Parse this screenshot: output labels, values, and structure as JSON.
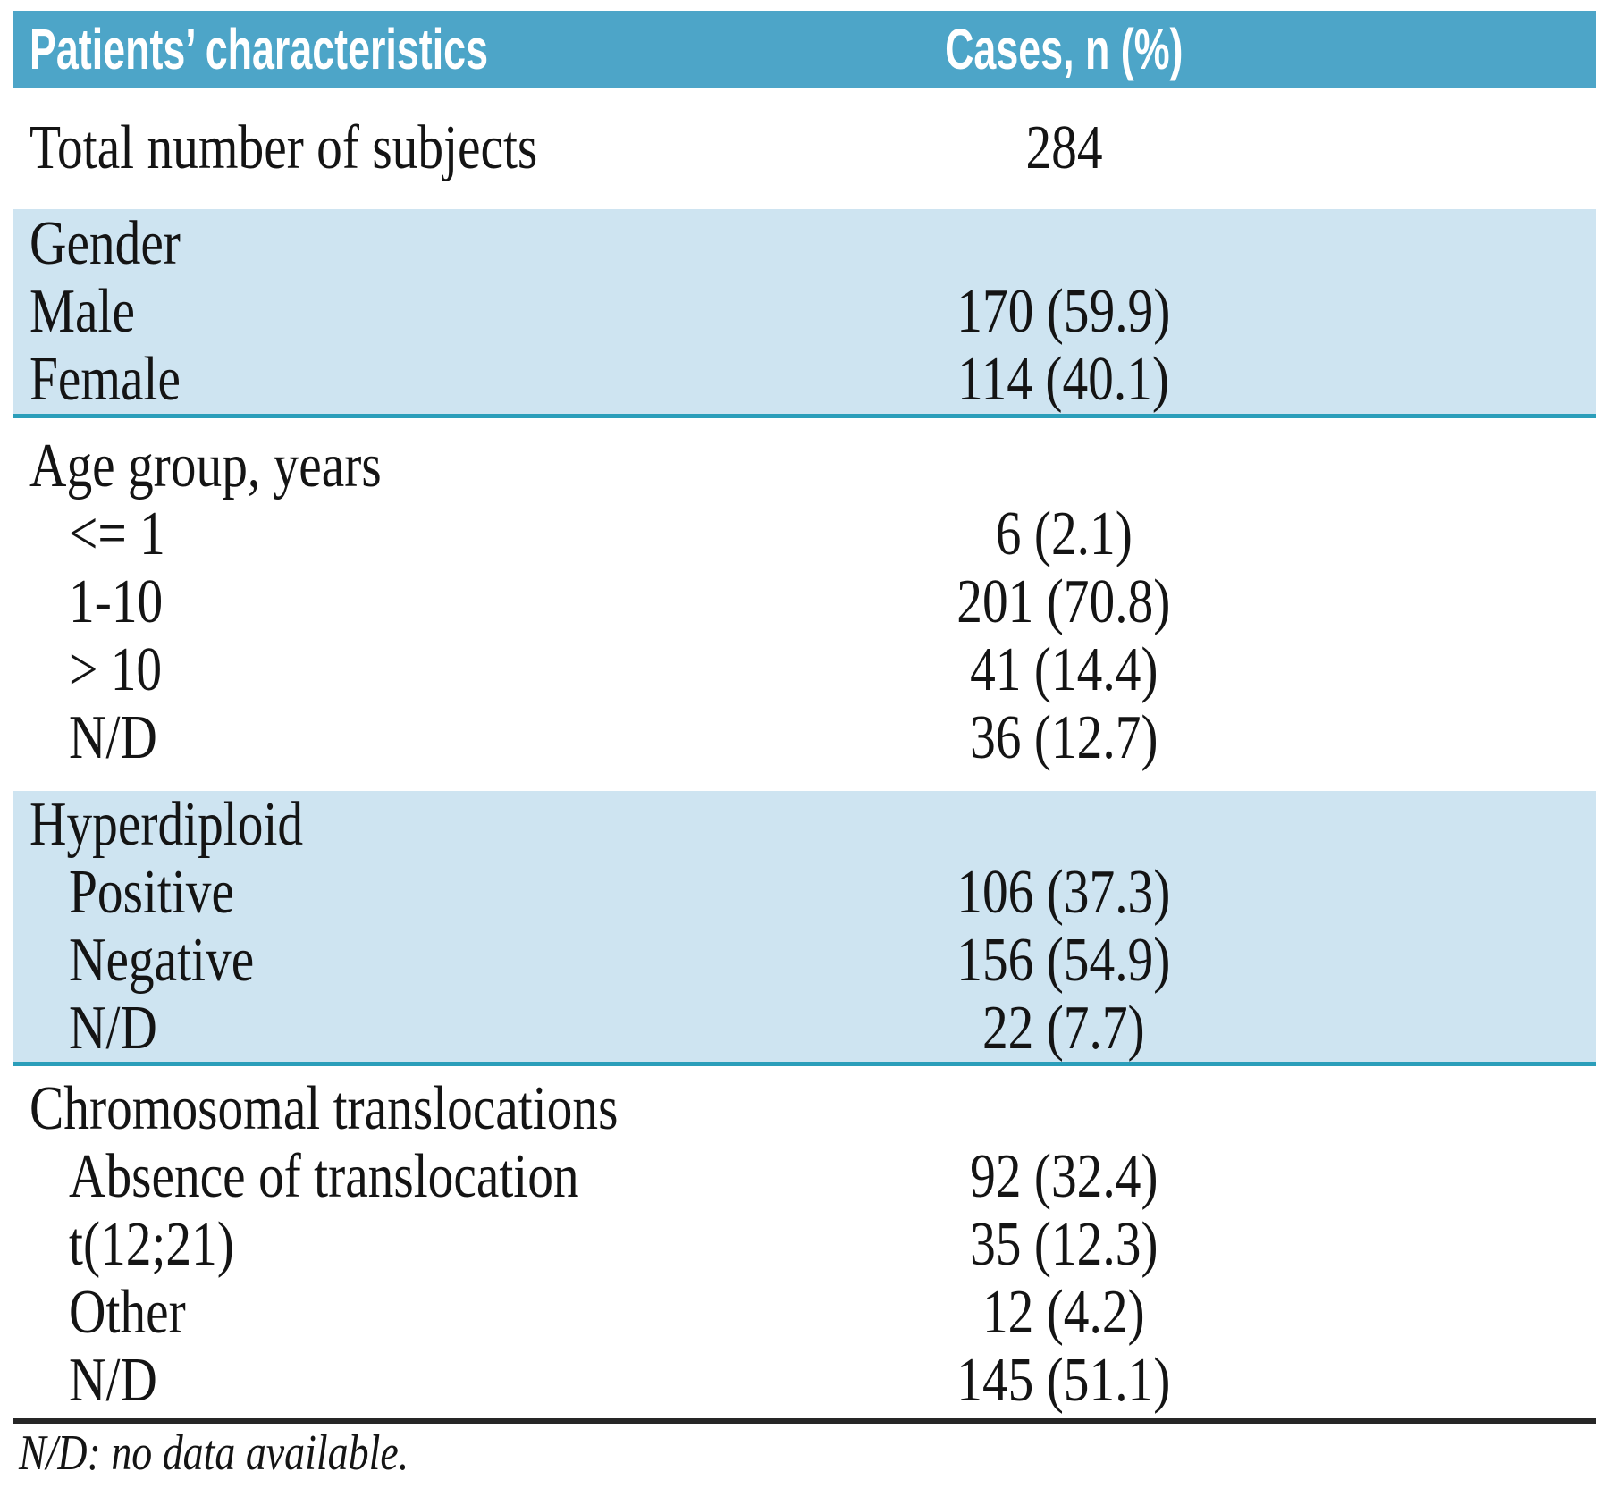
{
  "colors": {
    "header_bg": "#4da5c8",
    "shaded_band_bg": "#cee4f1",
    "band_separator": "#2b9eba",
    "bottom_rule": "#262626",
    "header_text": "#ffffff",
    "body_text": "#141414"
  },
  "table": {
    "header": {
      "characteristics": "Patients’ characteristics",
      "cases": "Cases, n (%)"
    },
    "total_row": {
      "label": "Total number of subjects",
      "value": "284"
    },
    "sections": [
      {
        "title": "Gender",
        "shaded": true,
        "rows": [
          {
            "label": "Male",
            "value": "170 (59.9)"
          },
          {
            "label": "Female",
            "value": "114 (40.1)"
          }
        ]
      },
      {
        "title": "Age group, years",
        "shaded": false,
        "rows": [
          {
            "label": "<= 1",
            "value": "6 (2.1)"
          },
          {
            "label": "1-10",
            "value": "201 (70.8)"
          },
          {
            "label": "> 10",
            "value": "41 (14.4)"
          },
          {
            "label": "N/D",
            "value": "36 (12.7)"
          }
        ]
      },
      {
        "title": "Hyperdiploid",
        "shaded": true,
        "rows": [
          {
            "label": "Positive",
            "value": "106 (37.3)"
          },
          {
            "label": "Negative",
            "value": "156 (54.9)"
          },
          {
            "label": "N/D",
            "value": "22 (7.7)"
          }
        ]
      },
      {
        "title": "Chromosomal translocations",
        "shaded": false,
        "rows": [
          {
            "label": "Absence of translocation",
            "value": "92 (32.4)"
          },
          {
            "label": "t(12;21)",
            "value": "35 (12.3)"
          },
          {
            "label": "Other",
            "value": "12 (4.2)"
          },
          {
            "label": "N/D",
            "value": "145 (51.1)"
          }
        ]
      }
    ],
    "footnote": "N/D: no data available."
  }
}
